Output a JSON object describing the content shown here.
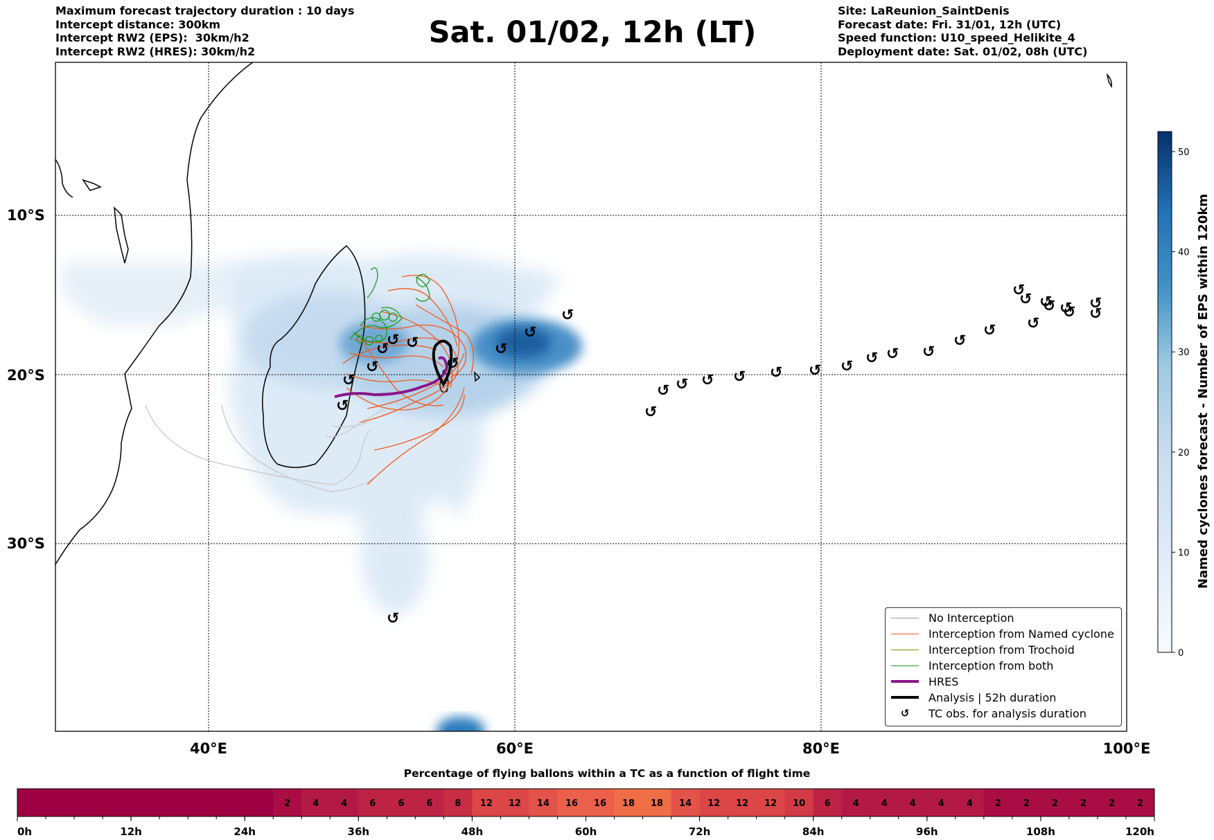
{
  "header": {
    "left_lines": [
      "Maximum forecast trajectory duration : 10 days",
      "Intercept distance: 300km",
      "Intercept RW2 (EPS):  30km/h2",
      "Intercept RW2 (HRES): 30km/h2"
    ],
    "title": "Sat. 01/02, 12h (LT)",
    "right_lines": [
      "Site: LaReunion_SaintDenis",
      "Forecast date: Fri. 31/01, 12h (UTC)",
      "Speed function: U10_speed_Helikite_4",
      "Deployment date: Sat. 01/02, 08h (UTC)"
    ]
  },
  "map": {
    "lat_labels": [
      "10°S",
      "20°S",
      "30°S"
    ],
    "lon_labels": [
      "40°E",
      "60°E",
      "80°E",
      "100°E"
    ],
    "colors": {
      "no_interception": "#9a9a9a",
      "named_cyclone": "#f05a1c",
      "trochoid": "#8a8a00",
      "both": "#1e9a1e",
      "hres": "#8b168b",
      "analysis": "#000000"
    }
  },
  "colorbar": {
    "label": "Named cyclones forecast - Number of EPS within 120km",
    "ticks": [
      "0",
      "10",
      "20",
      "30",
      "40",
      "50"
    ],
    "max": 52
  },
  "legend": {
    "items": [
      {
        "label": "No Interception",
        "icon": "thin-gray-line"
      },
      {
        "label": "Interception from Named cyclone",
        "icon": "thin-orange-line"
      },
      {
        "label": "Interception from Trochoid",
        "icon": "thin-olive-line"
      },
      {
        "label": "Interception from both",
        "icon": "thin-green-line"
      },
      {
        "label": "HRES",
        "icon": "thick-purple-line"
      },
      {
        "label": "Analysis | 52h duration",
        "icon": "thick-black-line"
      },
      {
        "label": "TC obs. for analysis duration",
        "icon": "cyclone-symbol-icon"
      }
    ]
  },
  "bottom_bar": {
    "title": "Percentage of flying ballons within a TC as a function of flight time",
    "time_labels": [
      "0h",
      "12h",
      "24h",
      "36h",
      "48h",
      "60h",
      "72h",
      "84h",
      "96h",
      "108h",
      "120h"
    ],
    "values": [
      0,
      0,
      0,
      0,
      0,
      0,
      0,
      0,
      0,
      2,
      4,
      4,
      6,
      6,
      6,
      8,
      12,
      12,
      14,
      16,
      16,
      18,
      18,
      14,
      12,
      12,
      12,
      10,
      6,
      4,
      4,
      4,
      4,
      4,
      2,
      2,
      2,
      2,
      2,
      2
    ],
    "labels": [
      "",
      "",
      "",
      "",
      "",
      "",
      "",
      "",
      "",
      "2",
      "4",
      "4",
      "6",
      "6",
      "6",
      "8",
      "12",
      "12",
      "14",
      "16",
      "16",
      "18",
      "18",
      "14",
      "12",
      "12",
      "12",
      "10",
      "6",
      "4",
      "4",
      "4",
      "4",
      "4",
      "2",
      "2",
      "2",
      "2",
      "2",
      "2"
    ]
  }
}
